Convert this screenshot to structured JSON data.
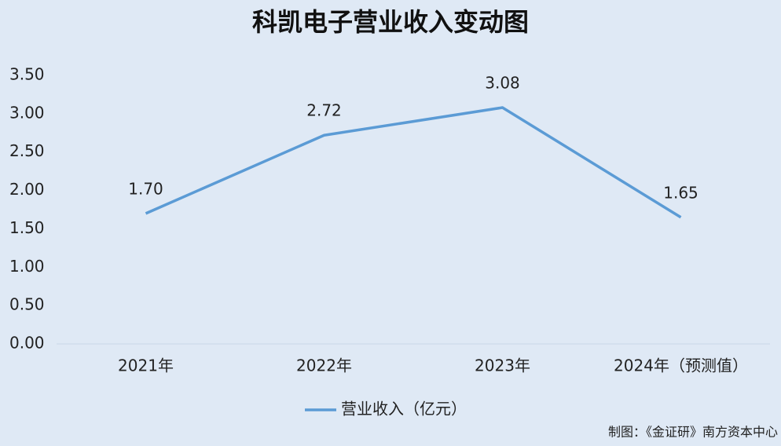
{
  "chart_data": {
    "type": "line",
    "title": "科凯电子营业收入变动图",
    "categories": [
      "2021年",
      "2022年",
      "2023年",
      "2024年（预测值）"
    ],
    "series": [
      {
        "name": "营业收入（亿元）",
        "color": "#5b9bd5",
        "values": [
          1.7,
          2.72,
          3.08,
          1.65
        ],
        "value_labels": [
          "1.70",
          "2.72",
          "3.08",
          "1.65"
        ]
      }
    ],
    "ylim": [
      0,
      3.5
    ],
    "yticks": [
      {
        "value": 0,
        "label": "0.00"
      },
      {
        "value": 0.5,
        "label": "0.50"
      },
      {
        "value": 1,
        "label": "1.00"
      },
      {
        "value": 1.5,
        "label": "1.50"
      },
      {
        "value": 2,
        "label": "2.00"
      },
      {
        "value": 2.5,
        "label": "2.50"
      },
      {
        "value": 3,
        "label": "3.00"
      },
      {
        "value": 3.5,
        "label": "3.50"
      }
    ],
    "grid": false,
    "legend": "bottom",
    "source": "制图：《金证研》南方资本中心"
  }
}
